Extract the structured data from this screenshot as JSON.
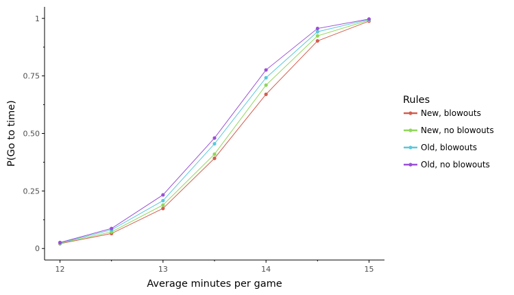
{
  "chart_data": {
    "type": "line",
    "xlabel": "Average minutes per game",
    "ylabel": "P(Go to time)",
    "xlim": [
      11.85,
      15.15
    ],
    "ylim": [
      -0.05,
      1.05
    ],
    "x_ticks": [
      12,
      13,
      14,
      15
    ],
    "x_tick_labels": [
      "12",
      "13",
      "14",
      "15"
    ],
    "y_ticks": [
      0,
      0.25,
      0.5,
      0.75,
      1
    ],
    "y_tick_labels": [
      "0",
      "0.25",
      "0.50",
      "0.75",
      "1"
    ],
    "grid": false,
    "legend": {
      "title": "Rules",
      "placement": "right"
    },
    "x": [
      12,
      12.5,
      13,
      13.5,
      14,
      14.5,
      15
    ],
    "series": [
      {
        "name": "New, blowouts",
        "color": "#d35e4f",
        "values": [
          0.021,
          0.065,
          0.174,
          0.392,
          0.67,
          0.902,
          0.988
        ]
      },
      {
        "name": "New, no blowouts",
        "color": "#8fd65a",
        "values": [
          0.023,
          0.072,
          0.189,
          0.41,
          0.71,
          0.924,
          0.992
        ]
      },
      {
        "name": "Old, blowouts",
        "color": "#5bc8dc",
        "values": [
          0.024,
          0.081,
          0.208,
          0.455,
          0.742,
          0.942,
          0.995
        ]
      },
      {
        "name": "Old, no blowouts",
        "color": "#9b4fd6",
        "values": [
          0.026,
          0.087,
          0.233,
          0.48,
          0.776,
          0.956,
          0.997
        ]
      }
    ]
  }
}
